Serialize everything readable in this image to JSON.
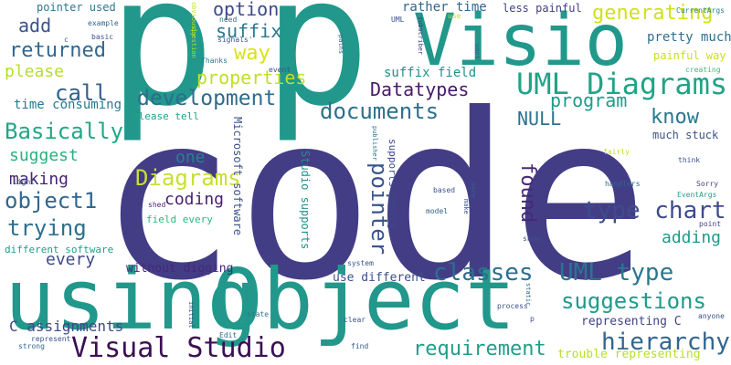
{
  "cloud": {
    "code": "code",
    "p1": "p",
    "p2": "p",
    "visio": "Visio",
    "using": "using",
    "object": "Object",
    "uml_diagrams": "UML Diagrams",
    "visual_studio": "Visual Studio",
    "documents": "documents",
    "development": "development",
    "classes": "classes",
    "uml_type": "UML type",
    "suggestions": "suggestions",
    "hierarchy": "hierarchy",
    "type_chart": "type chart",
    "pointer": "pointer",
    "found": "found",
    "requirement": "requirement",
    "datatypes": "Datatypes",
    "diagrams": "Diagrams",
    "object1": "object1",
    "trying": "trying",
    "basically": "Basically",
    "returned": "returned",
    "call": "call",
    "properties": "properties",
    "program": "program",
    "know": "know",
    "generating": "generating",
    "option": "option",
    "suffix": "suffix",
    "way": "way",
    "add": "add",
    "please": "please",
    "suggest": "suggest",
    "making": "making",
    "every": "every",
    "coding": "coding",
    "one": "one",
    "adding": "adding",
    "null": "NULL",
    "pretty_much": "pretty much",
    "suffix_field": "suffix field",
    "rather_time": "rather time",
    "less_painful": "less painful",
    "painful_way": "painful way",
    "much_stuck": "much stuck",
    "pointer_used": "pointer used",
    "time_consuming": "time consuming",
    "c_assignments": "C assignments",
    "different_software": "different software",
    "without_digging": "without digging",
    "use_different": "use different",
    "representing_c": "representing C",
    "trouble_representing": "trouble representing",
    "field_every": "field every",
    "please_tell": "please tell",
    "microsoft_software": "Microsoft software",
    "studio_supports": "Studio supports",
    "supports_making": "supports making",
    "currentargs": "CurrentArgs",
    "example": "example",
    "c_small": "c",
    "basic": "basic",
    "obviously": "obviously",
    "need": "need",
    "signals": "signals'",
    "question": "question",
    "thanks": "Thanks",
    "event": "event",
    "paths": "paths",
    "uml_small": "UML",
    "subscriber": "subscriber",
    "use_small": "use",
    "want": "want",
    "creating": "creating",
    "publisher": "publisher",
    "fairly": "fairly",
    "think": "think",
    "sorry": "Sorry",
    "eventargs": "EventArgs",
    "point": "point",
    "light": "light",
    "shed": "shed",
    "based": "based",
    "sure": "sure",
    "model": "model",
    "make": "make",
    "handlers": "handlers",
    "show": "show",
    "system": "system",
    "static": "static",
    "process": "process",
    "p_small": "p",
    "state": "state",
    "initial": "initial",
    "edit": "Edit",
    "clear": "clear",
    "anyone": "anyone",
    "represent": "represent",
    "strong": "strong",
    "find": "find"
  }
}
